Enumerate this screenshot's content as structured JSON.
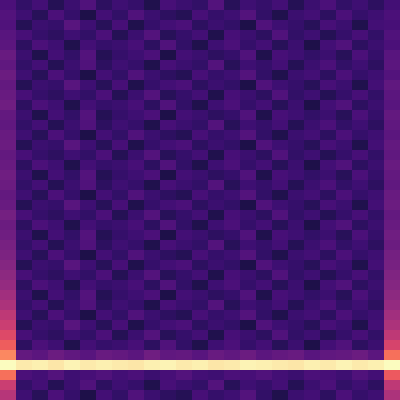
{
  "chart_data": {
    "type": "heatmap",
    "color": "magma",
    "tick_labels": false,
    "zlim": [
      0,
      100
    ],
    "cells": [
      [
        24,
        18,
        22,
        15,
        20,
        25,
        17,
        21,
        19,
        14,
        23,
        20,
        18,
        26,
        16,
        21,
        19,
        22,
        15,
        20,
        24,
        18,
        21,
        17,
        22
      ],
      [
        26,
        21,
        16,
        24,
        19,
        13,
        22,
        18,
        25,
        20,
        17,
        15,
        23,
        19,
        21,
        26,
        18,
        14,
        20,
        22,
        17,
        24,
        19,
        21,
        24
      ],
      [
        25,
        15,
        20,
        19,
        27,
        21,
        16,
        23,
        14,
        19,
        22,
        24,
        17,
        20,
        18,
        13,
        25,
        21,
        19,
        16,
        23,
        20,
        14,
        22,
        23
      ],
      [
        27,
        23,
        19,
        17,
        21,
        18,
        24,
        15,
        20,
        26,
        16,
        19,
        22,
        14,
        23,
        20,
        17,
        25,
        18,
        21,
        15,
        19,
        23,
        18,
        25
      ],
      [
        28,
        17,
        24,
        21,
        14,
        22,
        19,
        20,
        23,
        17,
        25,
        18,
        14,
        21,
        24,
        19,
        22,
        16,
        20,
        13,
        22,
        25,
        17,
        20,
        24
      ],
      [
        31,
        20,
        14,
        22,
        18,
        26,
        15,
        19,
        21,
        24,
        13,
        22,
        20,
        17,
        19,
        25,
        14,
        23,
        21,
        18,
        20,
        16,
        24,
        19,
        27
      ],
      [
        29,
        18,
        22,
        15,
        20,
        25,
        17,
        21,
        19,
        14,
        23,
        20,
        18,
        26,
        16,
        21,
        19,
        22,
        15,
        20,
        24,
        18,
        21,
        17,
        28
      ],
      [
        32,
        21,
        16,
        24,
        19,
        13,
        22,
        18,
        25,
        20,
        17,
        15,
        23,
        19,
        21,
        26,
        18,
        14,
        20,
        22,
        17,
        24,
        19,
        21,
        26
      ],
      [
        30,
        15,
        20,
        19,
        27,
        21,
        16,
        23,
        14,
        19,
        22,
        24,
        17,
        20,
        18,
        13,
        25,
        21,
        19,
        16,
        23,
        20,
        14,
        22,
        29
      ],
      [
        31,
        23,
        19,
        17,
        21,
        18,
        24,
        15,
        20,
        26,
        16,
        19,
        22,
        14,
        23,
        20,
        17,
        25,
        18,
        21,
        15,
        19,
        23,
        18,
        28
      ],
      [
        33,
        17,
        24,
        21,
        14,
        22,
        19,
        20,
        23,
        17,
        25,
        18,
        14,
        21,
        24,
        19,
        22,
        16,
        20,
        13,
        22,
        25,
        17,
        20,
        27
      ],
      [
        30,
        20,
        14,
        22,
        18,
        26,
        15,
        19,
        21,
        24,
        13,
        22,
        20,
        17,
        19,
        25,
        14,
        23,
        21,
        18,
        20,
        16,
        24,
        19,
        30
      ],
      [
        29,
        18,
        22,
        15,
        20,
        25,
        17,
        21,
        19,
        14,
        23,
        20,
        18,
        26,
        16,
        21,
        19,
        22,
        15,
        20,
        24,
        18,
        21,
        17,
        29
      ],
      [
        31,
        21,
        16,
        24,
        19,
        13,
        22,
        18,
        25,
        20,
        17,
        15,
        23,
        19,
        21,
        26,
        18,
        14,
        20,
        22,
        17,
        24,
        19,
        21,
        28
      ],
      [
        32,
        15,
        20,
        19,
        27,
        21,
        16,
        23,
        14,
        19,
        22,
        24,
        17,
        20,
        18,
        13,
        25,
        21,
        19,
        16,
        23,
        20,
        14,
        22,
        30
      ],
      [
        30,
        23,
        19,
        17,
        21,
        18,
        24,
        15,
        20,
        26,
        16,
        19,
        22,
        14,
        23,
        20,
        17,
        25,
        18,
        21,
        15,
        19,
        23,
        18,
        29
      ],
      [
        31,
        17,
        24,
        21,
        14,
        22,
        19,
        20,
        23,
        17,
        25,
        18,
        14,
        21,
        24,
        19,
        22,
        16,
        20,
        13,
        22,
        25,
        17,
        20,
        31
      ],
      [
        33,
        20,
        14,
        22,
        18,
        26,
        15,
        19,
        21,
        24,
        13,
        22,
        20,
        17,
        19,
        25,
        14,
        23,
        21,
        18,
        20,
        16,
        24,
        19,
        30
      ],
      [
        32,
        18,
        22,
        15,
        20,
        25,
        17,
        21,
        19,
        14,
        23,
        20,
        18,
        26,
        16,
        21,
        19,
        22,
        15,
        20,
        24,
        18,
        21,
        17,
        29
      ],
      [
        30,
        21,
        16,
        24,
        19,
        13,
        22,
        18,
        25,
        20,
        17,
        15,
        23,
        19,
        21,
        26,
        18,
        14,
        20,
        22,
        17,
        24,
        19,
        21,
        31
      ],
      [
        31,
        15,
        20,
        19,
        27,
        21,
        16,
        23,
        14,
        19,
        22,
        24,
        17,
        20,
        18,
        13,
        25,
        21,
        19,
        16,
        23,
        20,
        14,
        22,
        32
      ],
      [
        34,
        23,
        19,
        17,
        21,
        18,
        24,
        15,
        20,
        26,
        16,
        19,
        22,
        14,
        23,
        20,
        17,
        25,
        18,
        21,
        15,
        19,
        23,
        18,
        30
      ],
      [
        32,
        17,
        24,
        21,
        14,
        22,
        19,
        20,
        23,
        17,
        25,
        18,
        14,
        21,
        24,
        19,
        22,
        16,
        20,
        13,
        22,
        25,
        17,
        20,
        31
      ],
      [
        33,
        20,
        14,
        22,
        18,
        26,
        15,
        19,
        21,
        24,
        13,
        22,
        20,
        17,
        19,
        25,
        14,
        23,
        21,
        18,
        20,
        16,
        24,
        19,
        33
      ],
      [
        35,
        18,
        22,
        15,
        20,
        25,
        17,
        21,
        19,
        14,
        23,
        20,
        18,
        26,
        16,
        21,
        19,
        22,
        15,
        20,
        24,
        18,
        21,
        17,
        32
      ],
      [
        36,
        21,
        16,
        24,
        19,
        13,
        22,
        18,
        25,
        20,
        17,
        15,
        23,
        19,
        21,
        26,
        18,
        14,
        20,
        22,
        17,
        24,
        19,
        21,
        34
      ],
      [
        38,
        15,
        20,
        19,
        27,
        21,
        16,
        23,
        14,
        19,
        22,
        24,
        17,
        20,
        18,
        13,
        25,
        21,
        19,
        16,
        23,
        20,
        14,
        22,
        35
      ],
      [
        40,
        23,
        19,
        17,
        21,
        18,
        24,
        15,
        20,
        26,
        16,
        19,
        22,
        14,
        23,
        20,
        17,
        25,
        18,
        21,
        15,
        19,
        23,
        18,
        37
      ],
      [
        42,
        17,
        24,
        21,
        14,
        22,
        19,
        20,
        23,
        17,
        25,
        18,
        14,
        21,
        24,
        19,
        22,
        16,
        20,
        13,
        22,
        25,
        17,
        20,
        38
      ],
      [
        45,
        20,
        14,
        22,
        18,
        26,
        15,
        19,
        21,
        24,
        13,
        22,
        20,
        17,
        19,
        25,
        14,
        23,
        21,
        18,
        20,
        16,
        24,
        19,
        40
      ],
      [
        48,
        18,
        22,
        15,
        20,
        25,
        17,
        21,
        19,
        14,
        23,
        20,
        18,
        26,
        16,
        21,
        19,
        22,
        15,
        20,
        24,
        18,
        21,
        17,
        42
      ],
      [
        52,
        21,
        16,
        24,
        19,
        13,
        22,
        18,
        25,
        20,
        17,
        15,
        23,
        19,
        21,
        26,
        18,
        14,
        20,
        22,
        17,
        24,
        19,
        21,
        45
      ],
      [
        55,
        15,
        20,
        19,
        27,
        21,
        16,
        23,
        14,
        19,
        22,
        24,
        17,
        20,
        18,
        13,
        25,
        21,
        19,
        16,
        23,
        20,
        14,
        22,
        48
      ],
      [
        60,
        23,
        19,
        17,
        21,
        18,
        24,
        15,
        20,
        26,
        16,
        19,
        22,
        14,
        23,
        20,
        17,
        25,
        18,
        21,
        15,
        19,
        23,
        18,
        52
      ],
      [
        66,
        17,
        24,
        21,
        14,
        22,
        19,
        20,
        23,
        17,
        25,
        18,
        14,
        21,
        24,
        19,
        22,
        16,
        20,
        13,
        22,
        25,
        17,
        20,
        58
      ],
      [
        75,
        30,
        28,
        32,
        29,
        27,
        31,
        30,
        28,
        33,
        29,
        30,
        27,
        31,
        29,
        32,
        28,
        30,
        31,
        27,
        29,
        30,
        32,
        28,
        70
      ],
      [
        100,
        96,
        97,
        95,
        98,
        96,
        97,
        96,
        95,
        97,
        98,
        96,
        97,
        95,
        96,
        98,
        97,
        96,
        95,
        97,
        96,
        98,
        96,
        97,
        100
      ],
      [
        70,
        24,
        22,
        26,
        21,
        23,
        25,
        22,
        24,
        20,
        23,
        26,
        22,
        21,
        24,
        23,
        25,
        22,
        20,
        24,
        23,
        21,
        25,
        22,
        65
      ],
      [
        55,
        18,
        22,
        15,
        20,
        25,
        17,
        21,
        19,
        14,
        23,
        20,
        18,
        26,
        16,
        21,
        19,
        22,
        15,
        20,
        24,
        18,
        21,
        17,
        52
      ],
      [
        50,
        21,
        16,
        24,
        19,
        13,
        22,
        18,
        25,
        20,
        17,
        15,
        23,
        19,
        21,
        26,
        18,
        14,
        20,
        22,
        17,
        24,
        19,
        21,
        48
      ]
    ]
  }
}
